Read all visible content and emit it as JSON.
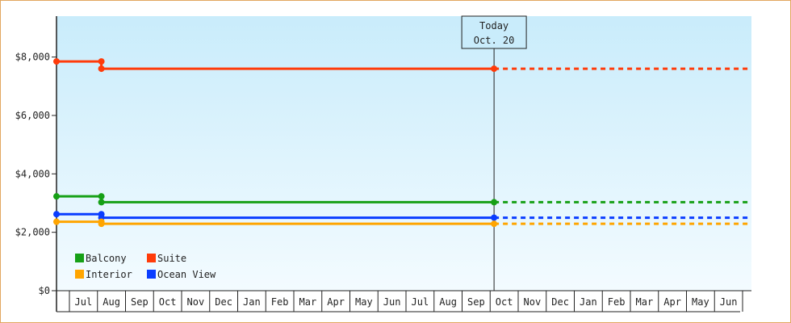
{
  "chart_data": {
    "type": "line",
    "title": "",
    "xlabel": "",
    "ylabel": "",
    "ylim": [
      0,
      9400
    ],
    "yticks": [
      {
        "value": 0,
        "label": "$0"
      },
      {
        "value": 2000,
        "label": "$2,000"
      },
      {
        "value": 4000,
        "label": "$4,000"
      },
      {
        "value": 6000,
        "label": "$6,000"
      },
      {
        "value": 8000,
        "label": "$8,000"
      }
    ],
    "months": [
      "Jul",
      "Aug",
      "Sep",
      "Oct",
      "Nov",
      "Dec",
      "Jan",
      "Feb",
      "Mar",
      "Apr",
      "May",
      "Jun",
      "Jul",
      "Aug",
      "Sep",
      "Oct",
      "Nov",
      "Dec",
      "Jan",
      "Feb",
      "Mar",
      "Apr",
      "May",
      "Jun"
    ],
    "x_start_month_index": 0.0,
    "x_end_month_index": 24.3,
    "today": {
      "label_line1": "Today",
      "label_line2": "Oct. 20",
      "month_index": 15.6
    },
    "legend": [
      {
        "name": "Balcony",
        "color": "#16a016"
      },
      {
        "name": "Suite",
        "color": "#ff3b0a"
      },
      {
        "name": "Interior",
        "color": "#ffa500"
      },
      {
        "name": "Ocean View",
        "color": "#0a3dff"
      }
    ],
    "series": [
      {
        "name": "Suite",
        "color": "#ff3b0a",
        "points": [
          {
            "x": 0.0,
            "y": 7850
          },
          {
            "x": 1.6,
            "y": 7850
          },
          {
            "x": 1.6,
            "y": 7600
          },
          {
            "x": 15.6,
            "y": 7600
          }
        ],
        "projected": 7600
      },
      {
        "name": "Balcony",
        "color": "#16a016",
        "points": [
          {
            "x": 0.0,
            "y": 3230
          },
          {
            "x": 1.6,
            "y": 3230
          },
          {
            "x": 1.6,
            "y": 3030
          },
          {
            "x": 15.6,
            "y": 3030
          }
        ],
        "projected": 3030
      },
      {
        "name": "Ocean View",
        "color": "#0a3dff",
        "points": [
          {
            "x": 0.0,
            "y": 2620
          },
          {
            "x": 1.6,
            "y": 2620
          },
          {
            "x": 1.6,
            "y": 2500
          },
          {
            "x": 15.6,
            "y": 2500
          }
        ],
        "projected": 2500
      },
      {
        "name": "Interior",
        "color": "#ffa500",
        "points": [
          {
            "x": 0.0,
            "y": 2360
          },
          {
            "x": 1.6,
            "y": 2360
          },
          {
            "x": 1.6,
            "y": 2290
          },
          {
            "x": 15.6,
            "y": 2290
          }
        ],
        "projected": 2290
      }
    ],
    "background_gradient": [
      "#c9ecfb",
      "#f3fbff"
    ]
  }
}
